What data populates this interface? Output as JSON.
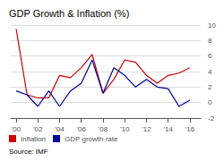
{
  "chart_data": {
    "type": "line",
    "title": "GDP Growth & Inflation (%)",
    "source": "Source: IMF",
    "x": [
      2000,
      2001,
      2002,
      2003,
      2004,
      2005,
      2006,
      2007,
      2008,
      2009,
      2010,
      2011,
      2012,
      2013,
      2014,
      2015,
      2016
    ],
    "series": [
      {
        "name": "Inflation",
        "color": "#cc0000",
        "values": [
          9.5,
          1.0,
          0.6,
          0.6,
          3.5,
          3.2,
          4.5,
          6.2,
          1.2,
          3.0,
          5.5,
          5.2,
          3.5,
          2.5,
          3.5,
          3.8,
          4.5
        ]
      },
      {
        "name": "GDP growth rate",
        "color": "#000099",
        "values": [
          1.5,
          1.0,
          -0.5,
          1.5,
          -0.5,
          1.5,
          2.5,
          5.5,
          1.2,
          4.5,
          3.5,
          2.0,
          3.0,
          2.0,
          1.8,
          -0.5,
          0.3
        ]
      }
    ],
    "xlim": [
      1999.5,
      2017.0
    ],
    "xticks": [
      {
        "value": 2000,
        "label": "'00"
      },
      {
        "value": 2002,
        "label": "'02"
      },
      {
        "value": 2004,
        "label": "'04"
      },
      {
        "value": 2006,
        "label": "'06"
      },
      {
        "value": 2008,
        "label": "'08"
      },
      {
        "value": 2010,
        "label": "'10"
      },
      {
        "value": 2012,
        "label": "'12"
      },
      {
        "value": 2014,
        "label": "'14"
      },
      {
        "value": 2016,
        "label": "'16"
      }
    ],
    "ylim": [
      -2,
      10
    ],
    "yticks": [
      -2,
      0,
      2,
      4,
      6,
      8,
      10
    ],
    "grid": true,
    "legend": "bottom"
  }
}
